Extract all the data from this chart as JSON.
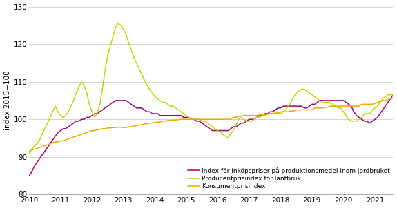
{
  "title": "",
  "ylabel": "index 2015=100",
  "ylim": [
    80,
    130
  ],
  "yticks": [
    80,
    90,
    100,
    110,
    120,
    130
  ],
  "line_purple_label": "Index för inköpspriser på produktionsmedel inom jordbruket",
  "line_green_label": "Producentprisindex för lantbruk",
  "line_orange_label": "Konsumentprisindex",
  "line_purple_color": "#a0006e",
  "line_green_color": "#c8d400",
  "line_orange_color": "#f0a800",
  "line_width": 1.1,
  "background_color": "#ffffff",
  "purple": [
    85.0,
    86.0,
    87.5,
    88.5,
    89.5,
    90.5,
    91.5,
    92.5,
    93.5,
    94.5,
    95.5,
    96.5,
    97.0,
    97.5,
    97.5,
    98.0,
    98.5,
    99.0,
    99.5,
    99.5,
    100.0,
    100.0,
    100.5,
    100.5,
    101.0,
    101.5,
    101.5,
    102.0,
    102.5,
    103.0,
    103.5,
    104.0,
    104.5,
    105.0,
    105.0,
    105.0,
    105.0,
    105.0,
    104.5,
    104.0,
    103.5,
    103.0,
    103.0,
    103.0,
    102.5,
    102.0,
    102.0,
    101.5,
    101.5,
    101.5,
    101.0,
    101.0,
    101.0,
    101.0,
    101.0,
    101.0,
    101.0,
    101.0,
    101.0,
    100.5,
    100.5,
    100.5,
    100.0,
    100.0,
    99.5,
    99.5,
    99.0,
    98.5,
    98.0,
    97.5,
    97.0,
    97.0,
    97.0,
    97.0,
    97.0,
    97.0,
    97.0,
    97.5,
    98.0,
    98.0,
    98.5,
    99.0,
    99.0,
    99.5,
    100.0,
    100.0,
    100.0,
    100.5,
    101.0,
    101.0,
    101.5,
    101.5,
    102.0,
    102.0,
    102.5,
    103.0,
    103.0,
    103.5,
    103.5,
    103.5,
    103.5,
    103.5,
    103.5,
    103.5,
    103.5,
    103.0,
    103.0,
    103.5,
    104.0,
    104.0,
    104.5,
    105.0,
    105.0,
    105.0,
    105.0,
    105.0,
    105.0,
    105.0,
    105.0,
    105.0,
    105.0,
    104.5,
    104.0,
    103.5,
    102.0,
    101.0,
    100.5,
    100.0,
    99.5,
    99.5,
    99.0,
    99.5,
    100.0,
    100.5,
    101.5,
    102.5,
    103.5,
    104.5,
    105.5,
    106.5,
    107.0,
    107.5,
    108.0,
    108.5
  ],
  "green": [
    91.0,
    92.0,
    93.0,
    93.5,
    94.5,
    96.0,
    97.5,
    99.0,
    100.5,
    102.0,
    103.5,
    102.0,
    101.0,
    100.5,
    101.0,
    102.0,
    103.5,
    105.0,
    107.0,
    108.5,
    110.0,
    109.0,
    107.0,
    104.0,
    102.0,
    100.5,
    101.5,
    104.0,
    108.0,
    113.0,
    117.0,
    119.5,
    122.0,
    124.5,
    125.5,
    125.0,
    124.0,
    122.5,
    120.5,
    118.5,
    116.5,
    115.0,
    113.5,
    112.0,
    110.5,
    109.0,
    108.0,
    107.0,
    106.0,
    105.5,
    105.0,
    104.5,
    104.5,
    104.0,
    103.5,
    103.5,
    103.0,
    102.5,
    102.0,
    101.5,
    101.0,
    100.5,
    100.0,
    100.0,
    100.0,
    100.0,
    99.5,
    99.5,
    99.0,
    98.5,
    98.0,
    97.5,
    97.0,
    96.5,
    96.0,
    95.5,
    95.0,
    96.0,
    97.0,
    98.5,
    100.0,
    100.5,
    100.0,
    99.5,
    99.5,
    99.5,
    100.0,
    100.5,
    100.5,
    101.0,
    101.0,
    101.5,
    101.5,
    101.5,
    101.5,
    101.5,
    101.5,
    102.0,
    102.5,
    103.5,
    104.5,
    106.0,
    107.0,
    107.5,
    108.0,
    108.0,
    107.5,
    107.0,
    106.5,
    106.0,
    105.5,
    105.0,
    104.5,
    104.5,
    104.5,
    104.5,
    104.0,
    103.5,
    103.0,
    103.0,
    102.0,
    101.0,
    100.0,
    99.5,
    99.5,
    99.5,
    100.0,
    100.5,
    101.5,
    101.5,
    101.5,
    102.5,
    103.0,
    103.5,
    104.5,
    105.5,
    106.0,
    106.5,
    106.5,
    106.5,
    106.5,
    106.5,
    106.0,
    106.0
  ],
  "orange": [
    91.5,
    91.8,
    92.0,
    92.2,
    92.5,
    92.7,
    93.0,
    93.2,
    93.5,
    93.8,
    94.0,
    94.0,
    94.2,
    94.3,
    94.5,
    94.8,
    95.0,
    95.3,
    95.5,
    95.7,
    96.0,
    96.2,
    96.5,
    96.7,
    97.0,
    97.0,
    97.2,
    97.3,
    97.5,
    97.5,
    97.7,
    97.7,
    97.8,
    97.8,
    97.9,
    97.9,
    97.8,
    97.8,
    98.0,
    98.0,
    98.2,
    98.3,
    98.5,
    98.5,
    98.8,
    98.8,
    99.0,
    99.0,
    99.2,
    99.2,
    99.3,
    99.5,
    99.5,
    99.7,
    99.7,
    99.8,
    99.8,
    99.9,
    100.0,
    100.0,
    100.0,
    100.0,
    100.0,
    100.0,
    100.0,
    100.0,
    100.0,
    100.0,
    100.0,
    100.0,
    100.0,
    100.0,
    100.0,
    100.0,
    100.0,
    100.0,
    100.0,
    100.0,
    100.5,
    100.5,
    100.8,
    100.8,
    101.0,
    101.0,
    101.0,
    101.0,
    101.0,
    101.0,
    101.2,
    101.2,
    101.2,
    101.3,
    101.5,
    101.5,
    101.7,
    101.7,
    102.0,
    102.0,
    102.0,
    102.0,
    102.2,
    102.2,
    102.5,
    102.5,
    102.5,
    102.5,
    102.5,
    102.5,
    102.5,
    103.0,
    103.0,
    103.0,
    103.0,
    103.2,
    103.2,
    103.5,
    103.5,
    103.5,
    103.5,
    103.5,
    103.5,
    103.5,
    103.5,
    103.5,
    103.5,
    103.5,
    103.5,
    104.0,
    104.0,
    104.0,
    104.0,
    104.0,
    104.2,
    104.5,
    104.7,
    105.0,
    105.0,
    105.2,
    105.5,
    105.5,
    105.7,
    106.0,
    106.0,
    106.0
  ]
}
